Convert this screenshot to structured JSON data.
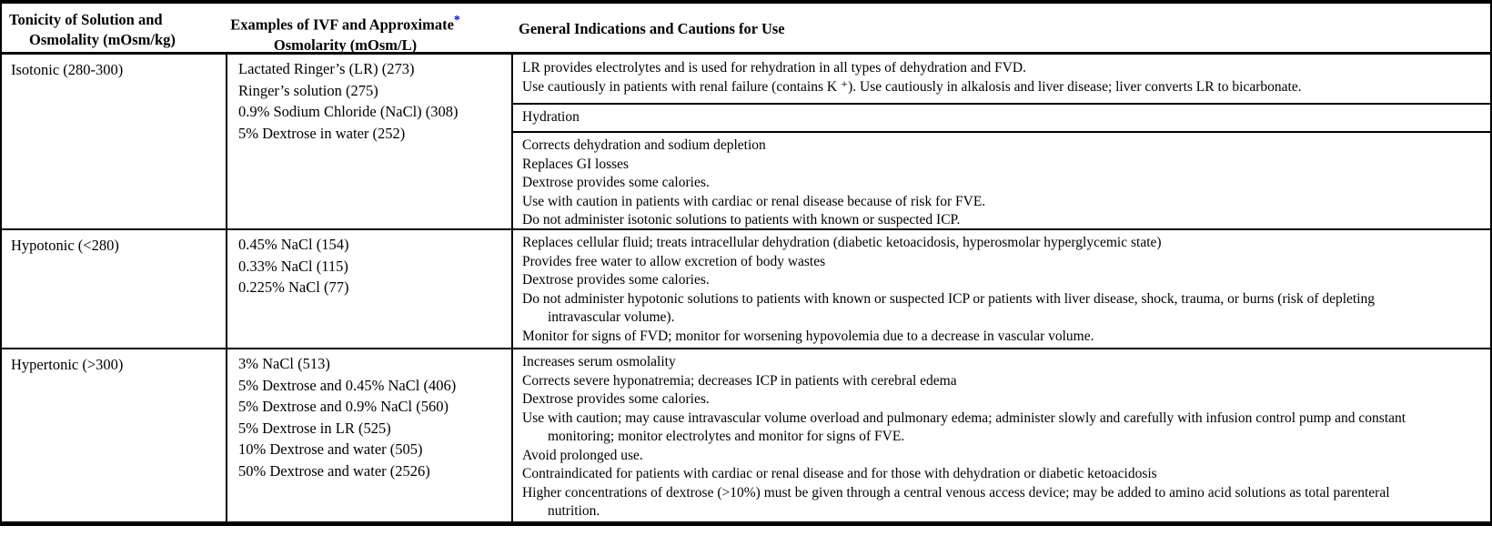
{
  "colors": {
    "border": "#000000",
    "asterisk_blue": "#0000f0",
    "background": "#ffffff"
  },
  "header": {
    "col1_line1": "Tonicity of Solution and",
    "col1_line2": "Osmolality (mOsm/kg)",
    "col2_line1": "Examples of IVF and Approximate",
    "col2_asterisk": "*",
    "col2_line2": "Osmolarity (mOsm/L)",
    "col3": "General Indications and Cautions for Use"
  },
  "rows": [
    {
      "tonicity": "Isotonic (280-300)",
      "examples": [
        "Lactated Ringer’s (LR) (273)",
        "Ringer’s solution (275)",
        "0.9% Sodium Chloride (NaCl) (308)",
        "5% Dextrose in water (252)"
      ],
      "blocks": [
        {
          "lines": [
            "LR provides electrolytes and is used for rehydration in all types of dehydration and FVD.",
            "Use cautiously in patients with renal failure (contains K ⁺). Use cautiously in alkalosis and liver disease; liver converts LR to bicarbonate."
          ]
        },
        {
          "lines": [
            "Hydration"
          ]
        },
        {
          "lines": [
            "Corrects dehydration and sodium depletion",
            "Replaces GI losses",
            "Dextrose provides some calories.",
            "Use with caution in patients with cardiac or renal disease because of risk for FVE.",
            "Do not administer isotonic solutions to patients with known or suspected ICP."
          ]
        }
      ]
    },
    {
      "tonicity": "Hypotonic (<280)",
      "examples": [
        "0.45% NaCl (154)",
        "0.33% NaCl (115)",
        "0.225% NaCl (77)"
      ],
      "blocks": [
        {
          "lines": [
            "Replaces cellular fluid; treats intracellular dehydration (diabetic ketoacidosis, hyperosmolar hyperglycemic state)",
            "Provides free water to allow excretion of body wastes",
            "Dextrose provides some calories.",
            "Do not administer hypotonic solutions to patients with known or suspected ICP or patients with liver disease, shock, trauma, or burns (risk of depleting intravascular volume).",
            "Monitor for signs of FVD; monitor for worsening hypovolemia due to a decrease in vascular volume."
          ]
        }
      ]
    },
    {
      "tonicity": "Hypertonic (>300)",
      "examples": [
        "3% NaCl (513)",
        "5% Dextrose and 0.45% NaCl (406)",
        "5% Dextrose and 0.9% NaCl (560)",
        "5% Dextrose in LR (525)",
        "10% Dextrose and water (505)",
        "50% Dextrose and water (2526)"
      ],
      "blocks": [
        {
          "lines": [
            "Increases serum osmolality",
            "Corrects severe hyponatremia; decreases ICP in patients with cerebral edema",
            "Dextrose provides some calories.",
            "Use with caution; may cause intravascular volume overload and pulmonary edema; administer slowly and carefully with infusion control pump and constant monitoring; monitor electrolytes and monitor for signs of FVE.",
            "Avoid prolonged use.",
            "Contraindicated for patients with cardiac or renal disease and for those with dehydration or diabetic ketoacidosis",
            "Higher concentrations of dextrose (>10%) must be given through a central venous access device; may be added to amino acid solutions as total parenteral nutrition."
          ]
        }
      ]
    }
  ]
}
